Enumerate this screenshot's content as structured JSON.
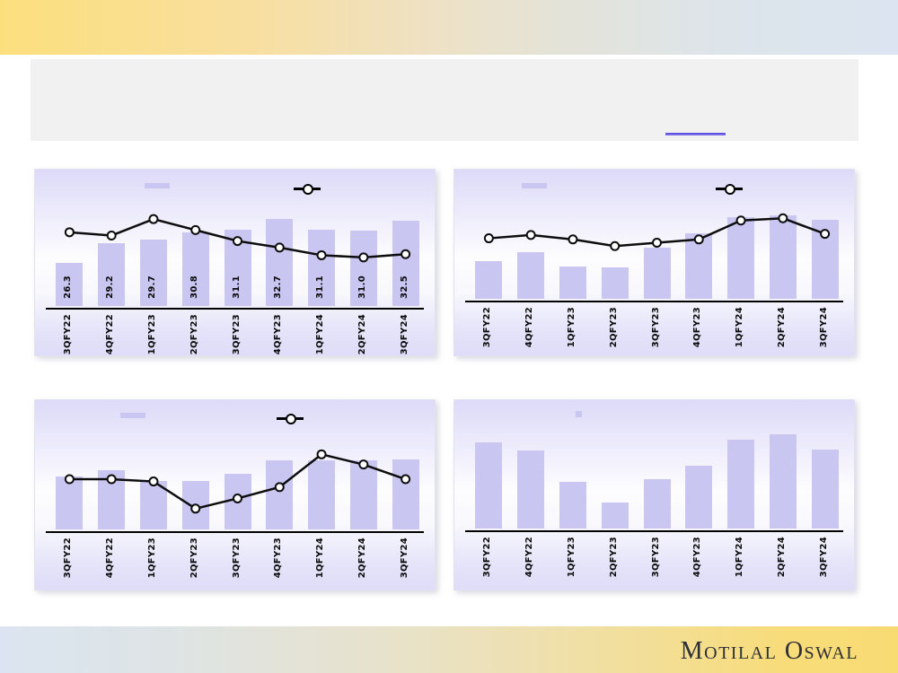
{
  "footer": {
    "brand": "Motilal Oswal"
  },
  "colors": {
    "bar_fill": "#c9c6f2",
    "line_stroke": "#0d0d0d",
    "marker_fill": "#ffffff",
    "panel_top": "#dcdaf7",
    "panel_bottom": "#dedcf8",
    "header_yellow": "#fcdf7d",
    "header_blue": "#dbe4f0",
    "textbox_bg": "#f1f1f2",
    "link_blue": "#5b50e3",
    "logo_color": "#2e2e35",
    "axis_color": "#000000"
  },
  "chart_data": [
    {
      "id": "top-left",
      "type": "bar+line",
      "categories": [
        "3QFY22",
        "4QFY22",
        "1QFY23",
        "2QFY23",
        "3QFY23",
        "4QFY23",
        "1QFY24",
        "2QFY24",
        "3QFY24"
      ],
      "bar_values": [
        26.3,
        29.2,
        29.7,
        30.8,
        31.1,
        32.7,
        31.1,
        31.0,
        32.5
      ],
      "bar_labels_shown": true,
      "bar_axis_min": 20,
      "bar_axis_max": 36,
      "line_heights_pct": [
        69,
        66,
        81,
        71,
        61,
        55,
        48,
        46,
        49
      ],
      "legend_markers": [
        "bar-swatch",
        "line-marker"
      ],
      "title": "",
      "xlabel": "",
      "ylabel": ""
    },
    {
      "id": "top-right",
      "type": "bar+line",
      "categories": [
        "3QFY22",
        "4QFY22",
        "1QFY23",
        "2QFY23",
        "3QFY23",
        "4QFY23",
        "1QFY24",
        "2QFY24",
        "3QFY24"
      ],
      "bar_labels_shown": false,
      "bar_heights_pct": [
        34,
        42,
        29,
        28,
        46,
        59,
        73,
        75,
        71
      ],
      "line_heights_pct": [
        56,
        59,
        55,
        49,
        52,
        55,
        72,
        74,
        60
      ],
      "legend_markers": [
        "bar-swatch",
        "line-marker"
      ],
      "title": "",
      "xlabel": "",
      "ylabel": ""
    },
    {
      "id": "bottom-left",
      "type": "bar+line",
      "categories": [
        "3QFY22",
        "4QFY22",
        "1QFY23",
        "2QFY23",
        "3QFY23",
        "4QFY23",
        "1QFY24",
        "2QFY24",
        "3QFY24"
      ],
      "bar_labels_shown": false,
      "bar_heights_pct": [
        47,
        52,
        43,
        43,
        49,
        61,
        61,
        61,
        62
      ],
      "line_heights_pct": [
        46,
        46,
        44,
        20,
        29,
        39,
        68,
        59,
        46
      ],
      "legend_markers": [
        "bar-swatch",
        "line-marker"
      ],
      "title": "",
      "xlabel": "",
      "ylabel": ""
    },
    {
      "id": "bottom-right",
      "type": "bar",
      "categories": [
        "3QFY22",
        "4QFY22",
        "1QFY23",
        "2QFY23",
        "3QFY23",
        "4QFY23",
        "1QFY24",
        "2QFY24",
        "3QFY24"
      ],
      "bar_labels_shown": false,
      "bar_heights_pct": [
        74,
        67,
        40,
        22,
        42,
        54,
        76,
        81,
        68
      ],
      "legend_markers": [
        "bar-swatch"
      ],
      "title": "",
      "xlabel": "",
      "ylabel": ""
    }
  ]
}
